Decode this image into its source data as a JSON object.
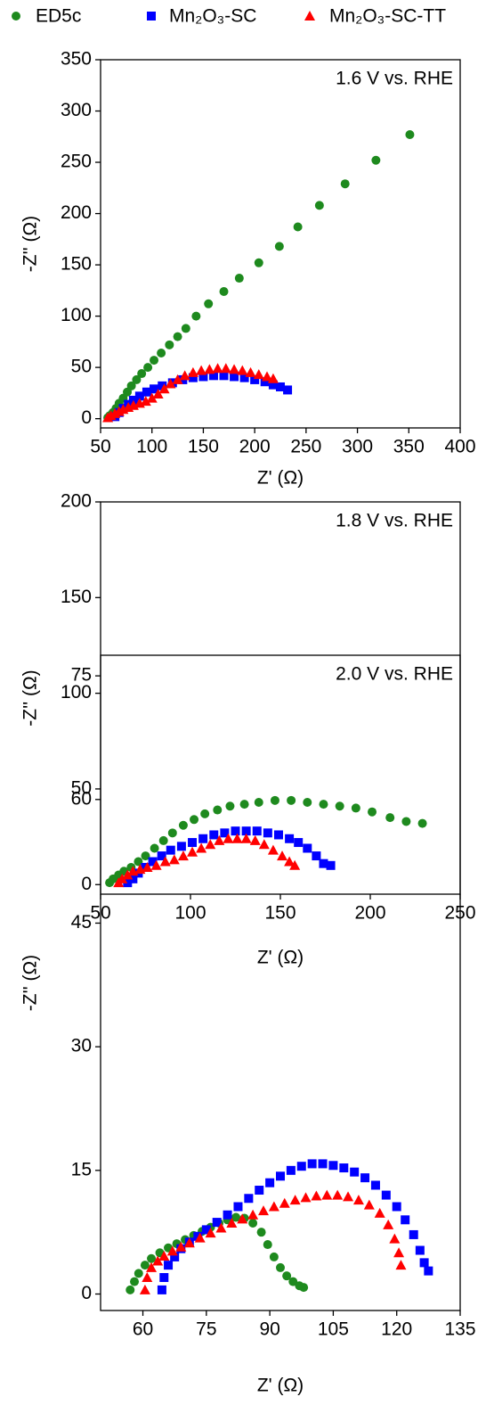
{
  "chart_data": [
    {
      "type": "scatter",
      "annotation": "1.6 V vs. RHE",
      "x_label": "Z' (Ω)",
      "y_label": "-Z'' (Ω)",
      "xlim": [
        50,
        400
      ],
      "xticks": [
        50,
        100,
        150,
        200,
        250,
        300,
        350,
        400
      ],
      "ylim": [
        -9,
        350
      ],
      "yticks": [
        0,
        50,
        100,
        150,
        200,
        250,
        300,
        350
      ],
      "series": [
        {
          "name": "ED5c",
          "color": "#1e8a1e",
          "marker": "circle",
          "x": [
            57,
            59,
            62,
            65,
            68,
            72,
            76,
            80,
            85,
            90,
            96,
            102,
            109,
            117,
            125,
            133,
            143,
            155,
            170,
            185,
            204,
            224,
            242,
            263,
            288,
            318,
            351
          ],
          "values": [
            1,
            3,
            6,
            10,
            15,
            20,
            26,
            32,
            38,
            44,
            50,
            57,
            64,
            72,
            80,
            88,
            100,
            112,
            124,
            137,
            152,
            168,
            187,
            208,
            229,
            252,
            277
          ]
        },
        {
          "name": "Mn₂O₃-SC",
          "color": "#0000ff",
          "marker": "square",
          "x": [
            64,
            68,
            72,
            77,
            82,
            88,
            95,
            102,
            110,
            120,
            130,
            140,
            150,
            160,
            170,
            180,
            190,
            200,
            210,
            218,
            225,
            232
          ],
          "values": [
            2,
            6,
            10,
            14,
            18,
            22,
            26,
            29,
            32,
            35,
            38,
            40,
            41,
            42,
            42,
            41,
            40,
            38,
            36,
            33,
            31,
            28
          ]
        },
        {
          "name": "Mn₂O₃-SC-TT",
          "color": "#ff0000",
          "marker": "triangle",
          "x": [
            57,
            60,
            64,
            68,
            72,
            77,
            82,
            88,
            94,
            100,
            106,
            112,
            118,
            125,
            132,
            140,
            148,
            156,
            164,
            172,
            180,
            188,
            196,
            204,
            212,
            218
          ],
          "values": [
            1,
            3,
            5,
            7,
            9,
            11,
            13,
            15,
            17,
            20,
            24,
            29,
            34,
            38,
            42,
            45,
            47,
            48,
            49,
            49,
            48,
            47,
            45,
            43,
            41,
            39
          ]
        }
      ]
    },
    {
      "type": "scatter",
      "annotation": "1.8 V vs. RHE",
      "x_label": "Z' (Ω)",
      "y_label": "-Z'' (Ω)",
      "xlim": [
        50,
        250
      ],
      "xticks": [
        50,
        100,
        150,
        200,
        250
      ],
      "ylim": [
        -5,
        200
      ],
      "yticks": [
        0,
        50,
        100,
        150,
        200
      ],
      "series": [
        {
          "color": "#1e8a1e",
          "marker": "circle",
          "x": [
            55,
            57,
            60,
            63,
            67,
            71,
            75,
            80,
            85,
            90,
            96,
            102,
            108,
            115,
            122,
            130,
            138,
            147,
            156,
            165,
            174,
            183,
            192,
            201,
            211,
            220,
            229
          ],
          "values": [
            1,
            3,
            5,
            7,
            9,
            12,
            15,
            19,
            23,
            27,
            31,
            34,
            37,
            39,
            41,
            42,
            43,
            44,
            44,
            43,
            42,
            41,
            40,
            38,
            35,
            33,
            32
          ]
        },
        {
          "color": "#0000ff",
          "marker": "square",
          "x": [
            65,
            68,
            71,
            75,
            79,
            84,
            89,
            95,
            101,
            107,
            113,
            119,
            125,
            131,
            137,
            143,
            149,
            155,
            160,
            165,
            170,
            174,
            178
          ],
          "values": [
            1,
            3,
            6,
            9,
            12,
            15,
            18,
            20,
            22,
            24,
            26,
            27,
            28,
            28,
            28,
            27,
            26,
            24,
            22,
            19,
            15,
            11,
            10
          ]
        },
        {
          "color": "#ff0000",
          "marker": "triangle",
          "x": [
            60,
            62,
            65,
            68,
            72,
            76,
            81,
            86,
            91,
            96,
            101,
            106,
            111,
            116,
            121,
            126,
            131,
            136,
            141,
            146,
            151,
            155,
            158
          ],
          "values": [
            1,
            3,
            5,
            7,
            8,
            9,
            10,
            12,
            13,
            15,
            17,
            19,
            21,
            23,
            24,
            24,
            24,
            23,
            21,
            18,
            15,
            12,
            10
          ]
        }
      ]
    },
    {
      "type": "scatter",
      "annotation": "2.0 V vs. RHE",
      "x_label": "Z' (Ω)",
      "y_label": "-Z'' (Ω)",
      "xlim": [
        50,
        135
      ],
      "xticks": [
        60,
        75,
        90,
        105,
        120,
        135
      ],
      "ylim": [
        -2,
        77.5
      ],
      "yticks": [
        0,
        15,
        30,
        45,
        60,
        75
      ],
      "series": [
        {
          "color": "#1e8a1e",
          "marker": "circle",
          "x": [
            57,
            58,
            59,
            60.5,
            62,
            64,
            66,
            68,
            70,
            72,
            74,
            76,
            78,
            80,
            82,
            84,
            86,
            88,
            89.5,
            91,
            92.5,
            94,
            95.5,
            97,
            98
          ],
          "values": [
            0.5,
            1.5,
            2.5,
            3.5,
            4.3,
            5,
            5.6,
            6.1,
            6.6,
            7.1,
            7.6,
            8.1,
            8.6,
            9,
            9.3,
            9.2,
            8.6,
            7.5,
            6,
            4.5,
            3.2,
            2.2,
            1.5,
            1,
            0.8
          ]
        },
        {
          "color": "#0000ff",
          "marker": "square",
          "x": [
            64.5,
            65,
            66,
            67.5,
            69,
            71,
            73,
            75,
            77.5,
            80,
            82.5,
            85,
            87.5,
            90,
            92.5,
            95,
            97.5,
            100,
            102.5,
            105,
            107.5,
            110,
            112.5,
            115,
            117.5,
            120,
            122,
            124,
            125.5,
            126.5,
            127.5
          ],
          "values": [
            0.5,
            2,
            3.5,
            4.5,
            5.5,
            6.3,
            7,
            7.8,
            8.7,
            9.6,
            10.6,
            11.6,
            12.6,
            13.5,
            14.3,
            15,
            15.5,
            15.8,
            15.8,
            15.6,
            15.3,
            14.8,
            14.1,
            13.2,
            12,
            10.6,
            9,
            7.2,
            5.3,
            3.8,
            2.8
          ]
        },
        {
          "color": "#ff0000",
          "marker": "triangle",
          "x": [
            60.5,
            61,
            62,
            63.5,
            65,
            67,
            69,
            71,
            73.5,
            76,
            78.5,
            81,
            83.5,
            86,
            88.5,
            91,
            93.5,
            96,
            98.5,
            101,
            103.5,
            106,
            108.5,
            111,
            113.5,
            116,
            118,
            119.5,
            120.5,
            121
          ],
          "values": [
            0.5,
            2,
            3.2,
            4,
            4.6,
            5.2,
            5.7,
            6.2,
            6.8,
            7.4,
            8,
            8.6,
            9.1,
            9.6,
            10.1,
            10.6,
            11,
            11.4,
            11.7,
            11.9,
            12,
            12,
            11.8,
            11.4,
            10.8,
            9.8,
            8.4,
            6.7,
            5,
            3.5
          ]
        }
      ]
    }
  ]
}
